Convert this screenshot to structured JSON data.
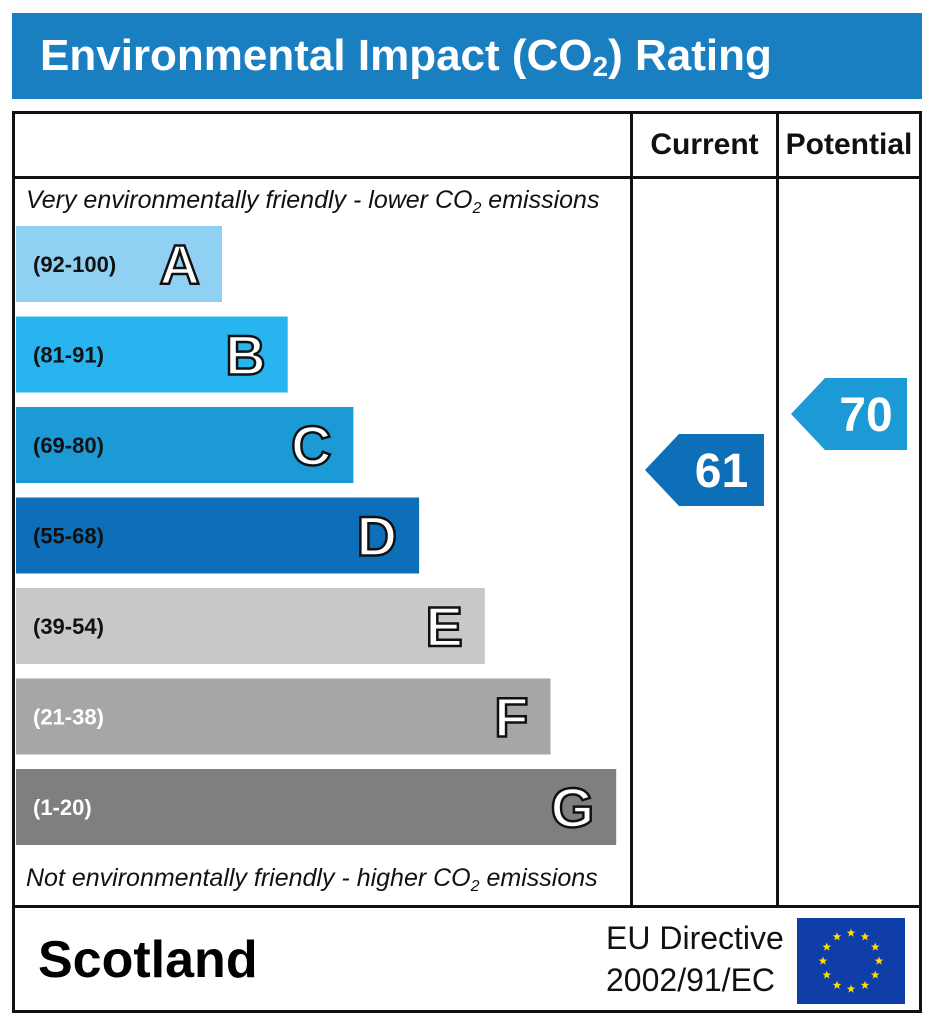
{
  "header": {
    "title_main": "Environmental Impact (CO",
    "title_sub": "2",
    "title_end": ") Rating"
  },
  "columns": {
    "current": "Current",
    "potential": "Potential"
  },
  "notes": {
    "top_main": "Very environmentally friendly - lower CO",
    "top_sub": "2",
    "top_end": " emissions",
    "bottom_main": "Not environmentally friendly - higher CO",
    "bottom_sub": "2",
    "bottom_end": " emissions"
  },
  "chart_data": {
    "type": "bar",
    "categories": [
      "A",
      "B",
      "C",
      "D",
      "E",
      "F",
      "G"
    ],
    "bands": [
      {
        "letter": "A",
        "range": "(92-100)",
        "min": 92,
        "max": 100,
        "color": "#8fd0f3"
      },
      {
        "letter": "B",
        "range": "(81-91)",
        "min": 81,
        "max": 91,
        "color": "#27b4ef"
      },
      {
        "letter": "C",
        "range": "(69-80)",
        "min": 69,
        "max": 80,
        "color": "#1b9ad5"
      },
      {
        "letter": "D",
        "range": "(55-68)",
        "min": 55,
        "max": 68,
        "color": "#0d6fb8"
      },
      {
        "letter": "E",
        "range": "(39-54)",
        "min": 39,
        "max": 54,
        "color": "#c8c8c8"
      },
      {
        "letter": "F",
        "range": "(21-38)",
        "min": 21,
        "max": 38,
        "color": "#a6a6a6"
      },
      {
        "letter": "G",
        "range": "(1-20)",
        "min": 1,
        "max": 20,
        "color": "#7f7f7f"
      }
    ],
    "current": {
      "value": 61,
      "band": "D",
      "color": "#0d6fb8"
    },
    "potential": {
      "value": 70,
      "band": "C",
      "color": "#1b9ad5"
    }
  },
  "footer": {
    "region": "Scotland",
    "directive_line1": "EU Directive",
    "directive_line2": "2002/91/EC",
    "flag_color": "#0f3ea8",
    "star_color": "#ffdd00"
  }
}
